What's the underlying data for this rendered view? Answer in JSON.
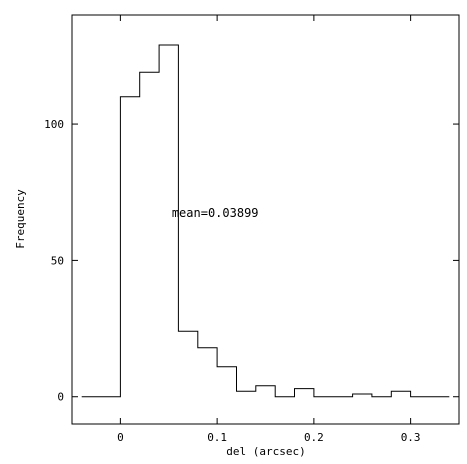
{
  "chart_data": {
    "type": "bar",
    "style": "step-histogram",
    "title": "",
    "xlabel": "del (arcsec)",
    "ylabel": "Frequency",
    "xlim": [
      -0.05,
      0.35
    ],
    "ylim": [
      -10,
      140
    ],
    "x_ticks": [
      0,
      0.1,
      0.2,
      0.3
    ],
    "x_tick_labels": [
      "0",
      "0.1",
      "0.2",
      "0.3"
    ],
    "y_ticks": [
      0,
      50,
      100
    ],
    "y_tick_labels": [
      "0",
      "50",
      "100"
    ],
    "bin_edges": [
      -0.04,
      -0.02,
      0.0,
      0.02,
      0.04,
      0.06,
      0.08,
      0.1,
      0.12,
      0.14,
      0.16,
      0.18,
      0.2,
      0.22,
      0.24,
      0.26,
      0.28,
      0.3,
      0.32,
      0.34
    ],
    "values": [
      0,
      0,
      110,
      119,
      129,
      24,
      18,
      11,
      2,
      4,
      0,
      3,
      0,
      0,
      1,
      0,
      2,
      0,
      0
    ],
    "annotation": {
      "text": "mean=0.03899",
      "x": 0.098,
      "y": 66
    },
    "grid": false,
    "legend": "none",
    "colors": {
      "line": "#000000",
      "background": "#ffffff"
    }
  }
}
